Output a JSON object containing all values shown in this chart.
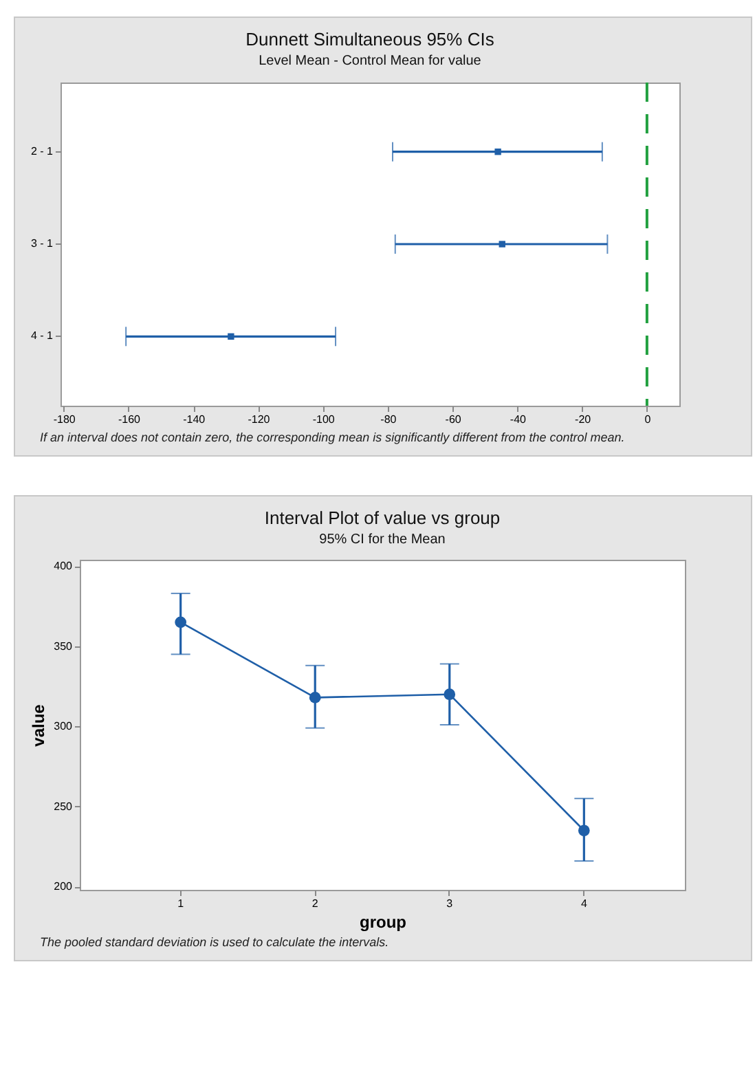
{
  "chart_data": [
    {
      "type": "scatter",
      "title": "Dunnett Simultaneous 95% CIs",
      "subtitle": "Level Mean - Control Mean for value",
      "orientation": "horizontal",
      "categories": [
        "2 - 1",
        "3 - 1",
        "4 - 1"
      ],
      "values": [
        -46,
        -44.7,
        -128.4
      ],
      "errors": [
        [
          -78.5,
          -13.8
        ],
        [
          -77.7,
          -12.2
        ],
        [
          -160.8,
          -96.1
        ]
      ],
      "color": "#1f5fa8",
      "xlim": [
        -181,
        10
      ],
      "xticks": [
        -180,
        -160,
        -140,
        -120,
        -100,
        -80,
        -60,
        -40,
        -20,
        0
      ],
      "marker": "square",
      "ref_lines": [
        {
          "axis": "x",
          "value": 0,
          "color": "#22a040",
          "line_style": "dashed"
        }
      ],
      "annotations": [
        "If an interval does not contain zero, the corresponding mean is significantly different from the control mean."
      ]
    },
    {
      "type": "line",
      "title": "Interval Plot of value vs group",
      "subtitle": "95% CI for the Mean",
      "xlabel": "group",
      "ylabel": "value",
      "categories": [
        "1",
        "2",
        "3",
        "4"
      ],
      "values": [
        365,
        318,
        320,
        235
      ],
      "errors": [
        [
          345,
          383
        ],
        [
          299,
          338
        ],
        [
          301,
          339
        ],
        [
          216,
          255
        ]
      ],
      "color": "#1f5fa8",
      "ylim": [
        198,
        404
      ],
      "yticks": [
        200,
        250,
        300,
        350,
        400
      ],
      "marker": "circle",
      "annotations": [
        "The pooled standard deviation is used to calculate the intervals."
      ]
    }
  ]
}
